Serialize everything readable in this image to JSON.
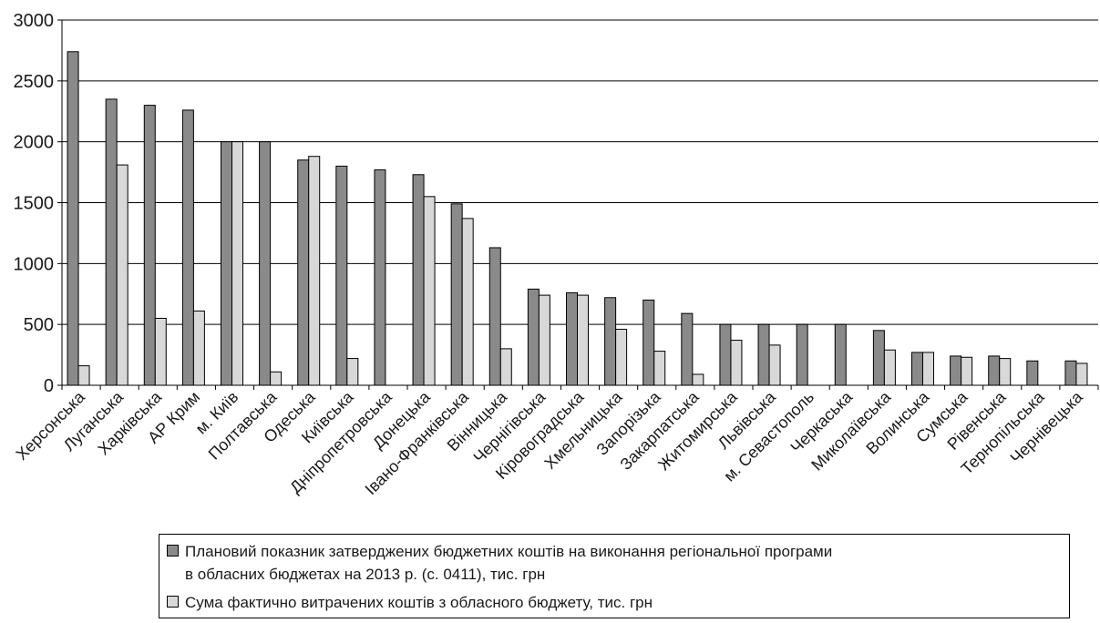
{
  "colors": {
    "planned": "#8a8a8a",
    "actual": "#d8d8d8",
    "bar_stroke": "#000000",
    "grid": "#000000"
  },
  "chart_data": {
    "type": "bar",
    "title": "",
    "xlabel": "",
    "ylabel": "",
    "ylim": [
      0,
      3000
    ],
    "yticks": [
      "0",
      "500",
      "1000",
      "1500",
      "2000",
      "2500",
      "3000"
    ],
    "ytick_values": [
      0,
      500,
      1000,
      1500,
      2000,
      2500,
      3000
    ],
    "grid": true,
    "legend_position": "bottom",
    "categories": [
      "Херсонська",
      "Луганська",
      "Харківська",
      "АР Крим",
      "м. Київ",
      "Полтавська",
      "Одеська",
      "Київська",
      "Дніпропетровська",
      "Донецька",
      "Івано-Франківська",
      "Вінницька",
      "Чернігівська",
      "Кіровоградська",
      "Хмельницька",
      "Запорізька",
      "Закарпатська",
      "Житомирська",
      "Львівська",
      "м. Севастополь",
      "Черкаська",
      "Миколаївська",
      "Волинська",
      "Сумська",
      "Рівенська",
      "Тернопільська",
      "Чернівецька"
    ],
    "series": [
      {
        "name": "Плановий показник затверджених бюджетних коштів на виконання регіональної програми в обласних бюджетах на 2013 р. (с. 0411), тис. грн",
        "name_line1": "Плановий показник затверджених бюджетних коштів на виконання регіональної програми",
        "name_line2": "в обласних бюджетах на 2013 р. (с. 0411), тис. грн",
        "values": [
          2740,
          2350,
          2300,
          2260,
          2000,
          2000,
          1850,
          1800,
          1770,
          1730,
          1490,
          1130,
          790,
          760,
          720,
          700,
          590,
          500,
          500,
          500,
          500,
          450,
          270,
          240,
          240,
          200,
          200
        ]
      },
      {
        "name": "Сума фактично витрачених коштів з обласного бюджету, тис. грн",
        "values": [
          160,
          1810,
          550,
          610,
          2000,
          110,
          1880,
          220,
          0,
          1550,
          1370,
          300,
          740,
          740,
          460,
          280,
          90,
          370,
          330,
          0,
          0,
          290,
          270,
          230,
          220,
          0,
          180
        ]
      }
    ]
  }
}
